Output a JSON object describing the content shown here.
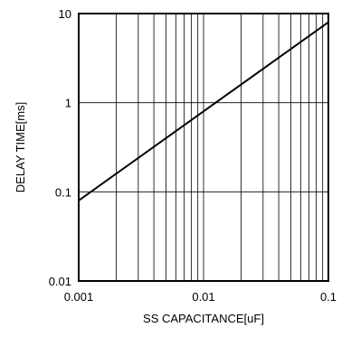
{
  "chart_data": {
    "type": "line",
    "xlabel": "SS CAPACITANCE[uF]",
    "ylabel": "DELAY TIME[ms]",
    "xscale": "log",
    "yscale": "log",
    "xlim": [
      0.001,
      0.1
    ],
    "ylim": [
      0.01,
      10
    ],
    "grid": "on",
    "x_ticks": [
      {
        "value": 0.001,
        "label": "0.001"
      },
      {
        "value": 0.01,
        "label": "0.01"
      },
      {
        "value": 0.1,
        "label": "0.1"
      }
    ],
    "y_ticks": [
      {
        "value": 0.01,
        "label": "0.01"
      },
      {
        "value": 0.1,
        "label": "0.1"
      },
      {
        "value": 1,
        "label": "1"
      },
      {
        "value": 10,
        "label": "10"
      }
    ],
    "series": [
      {
        "color": "#000000",
        "points": [
          {
            "x": 0.001,
            "y": 0.08
          },
          {
            "x": 0.1,
            "y": 8.0
          }
        ]
      }
    ]
  }
}
